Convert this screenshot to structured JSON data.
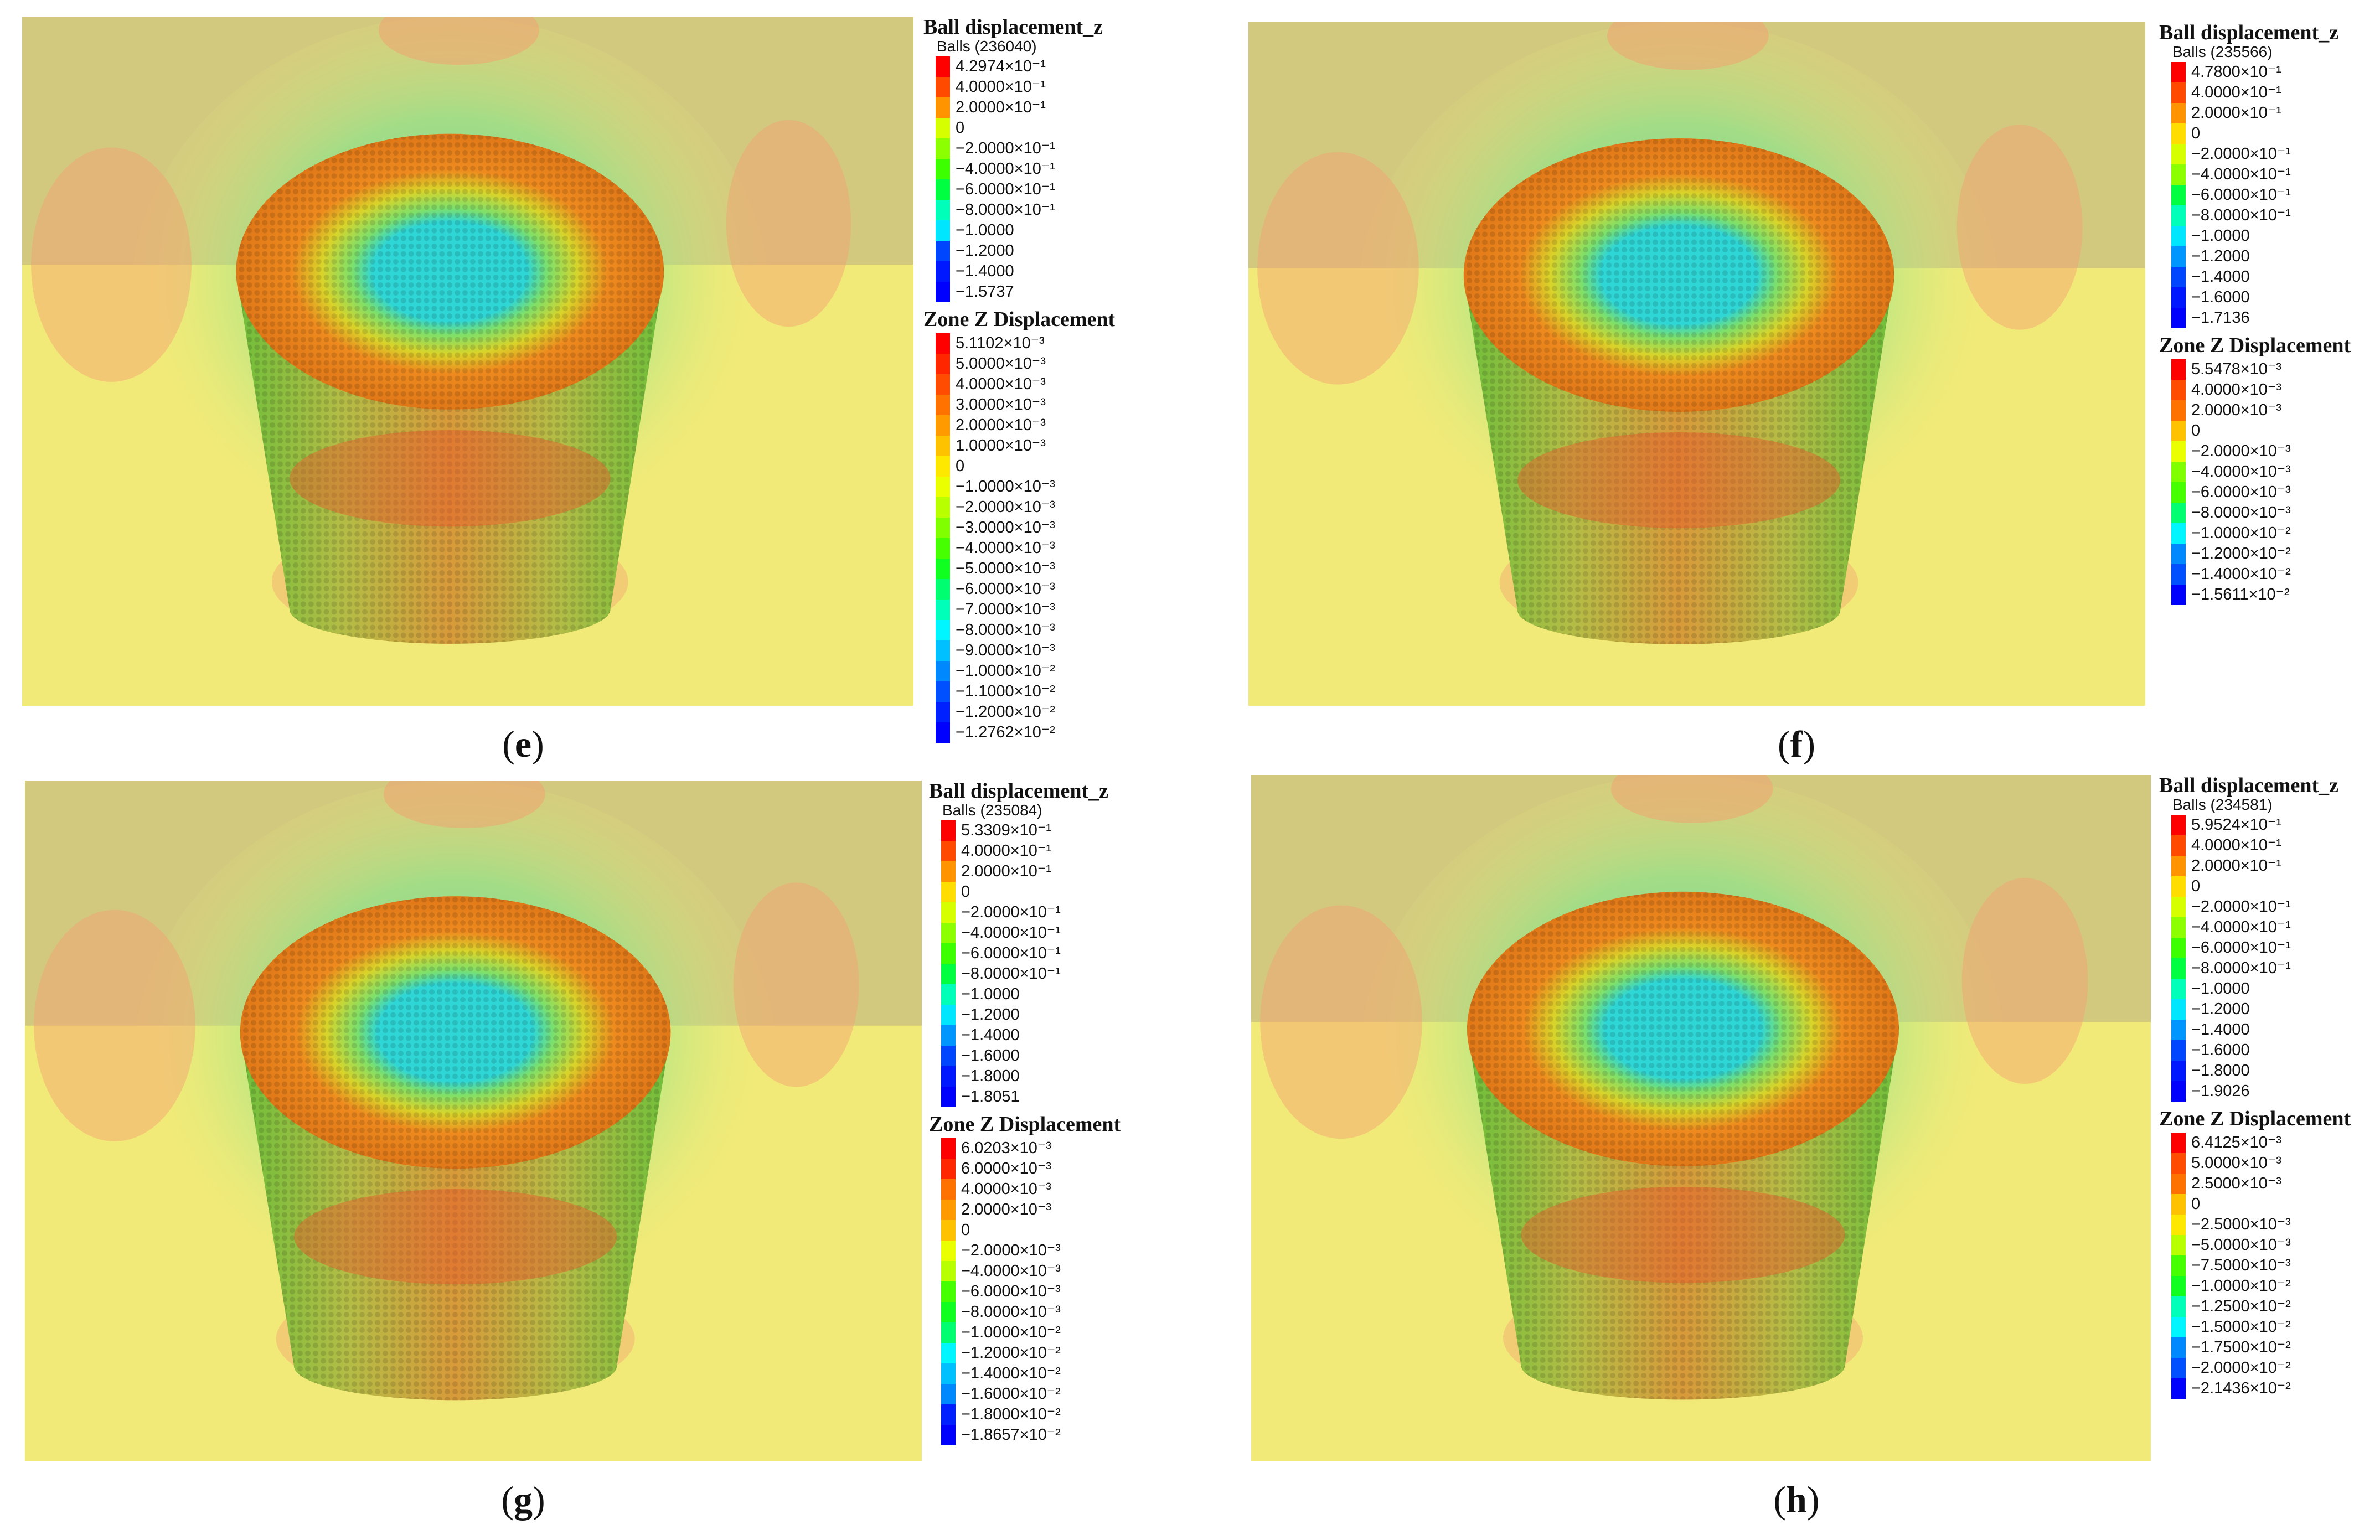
{
  "colors": {
    "soil_upper": "#d2c97e",
    "soil_lower": "#f2ea78",
    "pile_side": "#b4bd46",
    "pile_top": "#ee8a1e",
    "pile_center": "#2fd6d6",
    "ring_yellow": "#d9d42a",
    "halo_green": "#8fe58a"
  },
  "panels": [
    {
      "id": "e",
      "caption": {
        "open": "(",
        "letter": "e",
        "close": ")"
      },
      "ball": {
        "title": "Ball displacement_z",
        "subtitle": "Balls (236040)",
        "levels": [
          "4.2974×10⁻¹",
          "4.0000×10⁻¹",
          "2.0000×10⁻¹",
          "0",
          "−2.0000×10⁻¹",
          "−4.0000×10⁻¹",
          "−6.0000×10⁻¹",
          "−8.0000×10⁻¹",
          "−1.0000",
          "−1.2000",
          "−1.4000",
          "−1.5737"
        ]
      },
      "zone": {
        "title": "Zone Z Displacement",
        "levels": [
          "5.1102×10⁻³",
          "5.0000×10⁻³",
          "4.0000×10⁻³",
          "3.0000×10⁻³",
          "2.0000×10⁻³",
          "1.0000×10⁻³",
          "0",
          "−1.0000×10⁻³",
          "−2.0000×10⁻³",
          "−3.0000×10⁻³",
          "−4.0000×10⁻³",
          "−5.0000×10⁻³",
          "−6.0000×10⁻³",
          "−7.0000×10⁻³",
          "−8.0000×10⁻³",
          "−9.0000×10⁻³",
          "−1.0000×10⁻²",
          "−1.1000×10⁻²",
          "−1.2000×10⁻²",
          "−1.2762×10⁻²"
        ]
      }
    },
    {
      "id": "f",
      "caption": {
        "open": "(",
        "letter": "f",
        "close": ")"
      },
      "ball": {
        "title": "Ball displacement_z",
        "subtitle": "Balls (235566)",
        "levels": [
          "4.7800×10⁻¹",
          "4.0000×10⁻¹",
          "2.0000×10⁻¹",
          "0",
          "−2.0000×10⁻¹",
          "−4.0000×10⁻¹",
          "−6.0000×10⁻¹",
          "−8.0000×10⁻¹",
          "−1.0000",
          "−1.2000",
          "−1.4000",
          "−1.6000",
          "−1.7136"
        ]
      },
      "zone": {
        "title": "Zone Z Displacement",
        "levels": [
          "5.5478×10⁻³",
          "4.0000×10⁻³",
          "2.0000×10⁻³",
          "0",
          "−2.0000×10⁻³",
          "−4.0000×10⁻³",
          "−6.0000×10⁻³",
          "−8.0000×10⁻³",
          "−1.0000×10⁻²",
          "−1.2000×10⁻²",
          "−1.4000×10⁻²",
          "−1.5611×10⁻²"
        ]
      }
    },
    {
      "id": "g",
      "caption": {
        "open": "(",
        "letter": "g",
        "close": ")"
      },
      "ball": {
        "title": "Ball displacement_z",
        "subtitle": "Balls (235084)",
        "levels": [
          "5.3309×10⁻¹",
          "4.0000×10⁻¹",
          "2.0000×10⁻¹",
          "0",
          "−2.0000×10⁻¹",
          "−4.0000×10⁻¹",
          "−6.0000×10⁻¹",
          "−8.0000×10⁻¹",
          "−1.0000",
          "−1.2000",
          "−1.4000",
          "−1.6000",
          "−1.8000",
          "−1.8051"
        ]
      },
      "zone": {
        "title": "Zone Z Displacement",
        "levels": [
          "6.0203×10⁻³",
          "6.0000×10⁻³",
          "4.0000×10⁻³",
          "2.0000×10⁻³",
          "0",
          "−2.0000×10⁻³",
          "−4.0000×10⁻³",
          "−6.0000×10⁻³",
          "−8.0000×10⁻³",
          "−1.0000×10⁻²",
          "−1.2000×10⁻²",
          "−1.4000×10⁻²",
          "−1.6000×10⁻²",
          "−1.8000×10⁻²",
          "−1.8657×10⁻²"
        ]
      }
    },
    {
      "id": "h",
      "caption": {
        "open": "(",
        "letter": "h",
        "close": ")"
      },
      "ball": {
        "title": "Ball displacement_z",
        "subtitle": "Balls (234581)",
        "levels": [
          "5.9524×10⁻¹",
          "4.0000×10⁻¹",
          "2.0000×10⁻¹",
          "0",
          "−2.0000×10⁻¹",
          "−4.0000×10⁻¹",
          "−6.0000×10⁻¹",
          "−8.0000×10⁻¹",
          "−1.0000",
          "−1.2000",
          "−1.4000",
          "−1.6000",
          "−1.8000",
          "−1.9026"
        ]
      },
      "zone": {
        "title": "Zone Z Displacement",
        "levels": [
          "6.4125×10⁻³",
          "5.0000×10⁻³",
          "2.5000×10⁻³",
          "0",
          "−2.5000×10⁻³",
          "−5.0000×10⁻³",
          "−7.5000×10⁻³",
          "−1.0000×10⁻²",
          "−1.2500×10⁻²",
          "−1.5000×10⁻²",
          "−1.7500×10⁻²",
          "−2.0000×10⁻²",
          "−2.1436×10⁻²"
        ]
      }
    }
  ]
}
